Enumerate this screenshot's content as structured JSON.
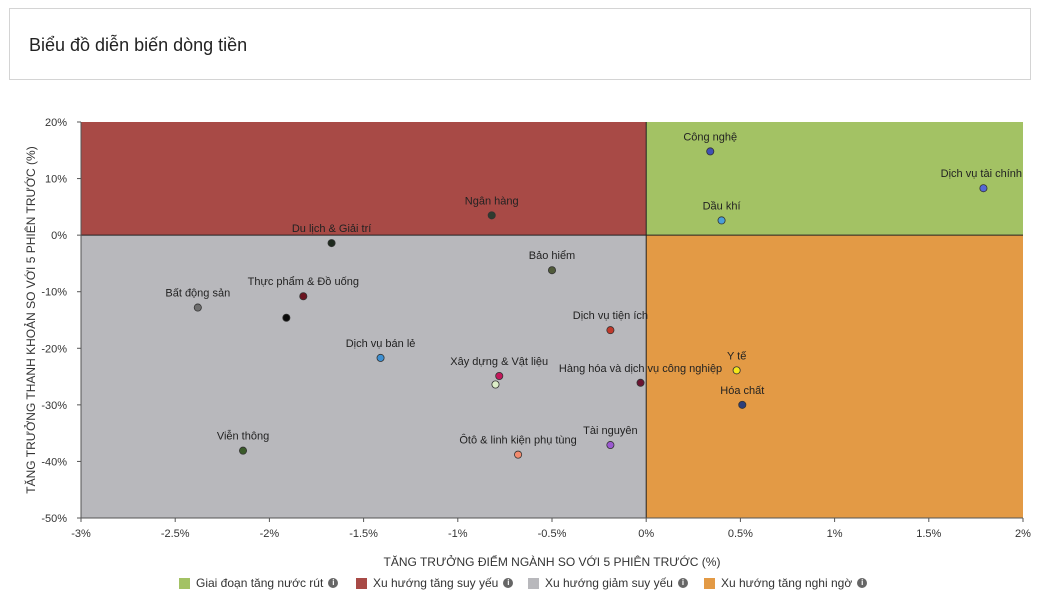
{
  "page": {
    "title": "Biểu đồ diễn biến dòng tiền"
  },
  "legend": [
    {
      "label": "Giai đoạn tăng nước rút",
      "color": "#a3c264",
      "icon": "info-icon"
    },
    {
      "label": "Xu hướng tăng suy yếu",
      "color": "#a84a46",
      "icon": "info-icon"
    },
    {
      "label": "Xu hướng giảm suy yếu",
      "color": "#b8b8bc",
      "icon": "info-icon"
    },
    {
      "label": "Xu hướng tăng nghi ngờ",
      "color": "#e39a45",
      "icon": "info-icon"
    }
  ],
  "chart_data": {
    "type": "scatter",
    "title": "",
    "xlabel": "TĂNG TRƯỞNG ĐIỂM NGÀNH SO VỚI 5 PHIÊN TRƯỚC (%)",
    "ylabel": "TĂNG TRƯỞNG THANH KHOẢN SO VỚI 5 PHIÊN TRƯỚC (%)",
    "xlim": [
      -3,
      2
    ],
    "ylim": [
      -50,
      20
    ],
    "x_ticks": [
      -3,
      -2.5,
      -2,
      -1.5,
      -1,
      -0.5,
      0,
      0.5,
      1,
      1.5,
      2
    ],
    "x_tick_labels": [
      "-3%",
      "-2.5%",
      "-2%",
      "-1.5%",
      "-1%",
      "-0.5%",
      "0%",
      "0.5%",
      "1%",
      "1.5%",
      "2%"
    ],
    "y_ticks": [
      20,
      10,
      0,
      -10,
      -20,
      -30,
      -40,
      -50
    ],
    "y_tick_labels": [
      "20%",
      "10%",
      "0%",
      "-10%",
      "-20%",
      "-30%",
      "-40%",
      "-50%"
    ],
    "quadrants": [
      {
        "name": "Giai đoạn tăng nước rút",
        "color": "#a3c264",
        "x": [
          0,
          2
        ],
        "y": [
          0,
          20
        ]
      },
      {
        "name": "Xu hướng tăng suy yếu",
        "color": "#a84a46",
        "x": [
          -3,
          0
        ],
        "y": [
          0,
          20
        ]
      },
      {
        "name": "Xu hướng giảm suy yếu",
        "color": "#b8b8bc",
        "x": [
          -3,
          0
        ],
        "y": [
          -50,
          0
        ]
      },
      {
        "name": "Xu hướng tăng nghi ngờ",
        "color": "#e39a45",
        "x": [
          0,
          2
        ],
        "y": [
          -50,
          0
        ]
      }
    ],
    "points": [
      {
        "label": "Công nghệ",
        "x": 0.34,
        "y": 14.8,
        "color": "#3f51b5"
      },
      {
        "label": "Dịch vụ tài chính",
        "x": 1.79,
        "y": 8.3,
        "color": "#5568d6"
      },
      {
        "label": "Dầu khí",
        "x": 0.4,
        "y": 2.6,
        "color": "#4a9fd8"
      },
      {
        "label": "Ngân hàng",
        "x": -0.82,
        "y": 3.5,
        "color": "#2f3b2f"
      },
      {
        "label": "Du lịch & Giải trí",
        "x": -1.67,
        "y": -1.4,
        "color": "#1e2a1e"
      },
      {
        "label": "Bảo hiểm",
        "x": -0.5,
        "y": -6.2,
        "color": "#505a3a"
      },
      {
        "label": "Thực phẩm & Đồ uống",
        "x": -1.82,
        "y": -10.8,
        "color": "#6b1420"
      },
      {
        "label": "Bất động sản",
        "x": -2.38,
        "y": -12.8,
        "color": "#6e6e6e"
      },
      {
        "label": "",
        "x": -1.91,
        "y": -14.6,
        "color": "#0a0a0a"
      },
      {
        "label": "Dịch vụ tiện ích",
        "x": -0.19,
        "y": -16.8,
        "color": "#c0392b"
      },
      {
        "label": "Dịch vụ bán lẻ",
        "x": -1.41,
        "y": -21.7,
        "color": "#3d8fd1"
      },
      {
        "label": "Y tế",
        "x": 0.48,
        "y": -23.9,
        "color": "#f5e71a"
      },
      {
        "label": "Xây dựng & Vật liệu",
        "x": -0.78,
        "y": -24.9,
        "color": "#c2185b"
      },
      {
        "label": "Hàng hóa và dịch vụ công nghiệp",
        "x": -0.03,
        "y": -26.1,
        "color": "#6b1431"
      },
      {
        "label": "",
        "x": -0.8,
        "y": -26.4,
        "color": "#dcedc8"
      },
      {
        "label": "Hóa chất",
        "x": 0.51,
        "y": -30.0,
        "color": "#2c3e7a"
      },
      {
        "label": "Viễn thông",
        "x": -2.14,
        "y": -38.1,
        "color": "#3a5a2a"
      },
      {
        "label": "Tài nguyên",
        "x": -0.19,
        "y": -37.1,
        "color": "#9b59d0"
      },
      {
        "label": "Ôtô & linh kiện phụ tùng",
        "x": -0.68,
        "y": -38.8,
        "color": "#f28b6e"
      }
    ]
  }
}
